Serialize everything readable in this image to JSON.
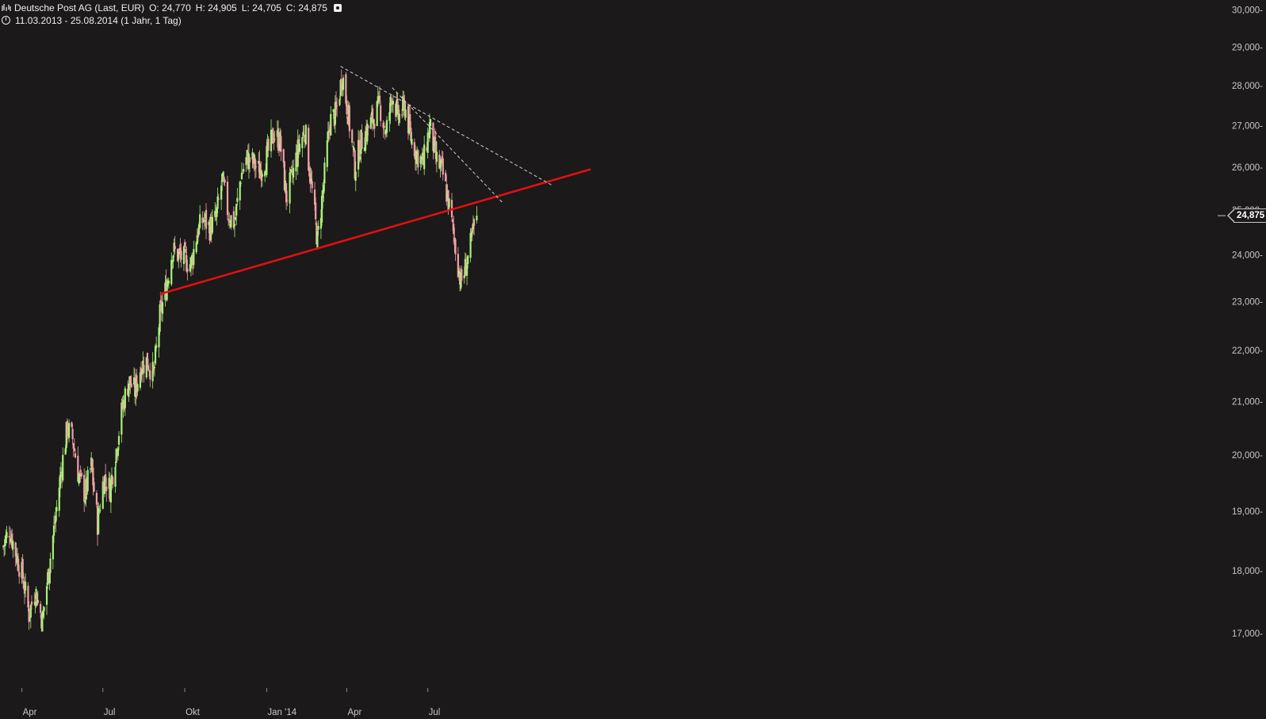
{
  "header": {
    "instrument": "Deutsche Post AG (Last, EUR)",
    "open": "O: 24,770",
    "high": "H: 24,905",
    "low": "L: 24,705",
    "close": "C: 24,875",
    "range": "11.03.2013 - 25.08.2014 (1 Jahr, 1 Tag)"
  },
  "last_price_label": "24,875",
  "colors": {
    "background": "#1b1919",
    "up_candle": "#a8f07a",
    "down_candle": "#f0a0a8",
    "support_line": "#e01010",
    "resistance_lines": "#d0d0d0",
    "axis_text": "#c8c8c8"
  },
  "chart_data": {
    "type": "candlestick",
    "x_range": [
      "2013-03-11",
      "2014-08-25"
    ],
    "ylim": [
      16200,
      30100
    ],
    "y_scale": "log",
    "y_ticks": [
      "17,000",
      "18,000",
      "19,000",
      "20,000",
      "21,000",
      "22,000",
      "23,000",
      "24,000",
      "25,000",
      "26,000",
      "27,000",
      "28,000",
      "29,000",
      "30,000"
    ],
    "x_ticks": [
      "Apr",
      "Jul",
      "Okt",
      "Jan '14",
      "Apr",
      "Jul"
    ],
    "x_tick_dates": [
      "2013-04-01",
      "2013-07-01",
      "2013-10-01",
      "2014-01-01",
      "2014-04-01",
      "2014-07-01"
    ],
    "close_path": [
      [
        "2013-03-11",
        18400
      ],
      [
        "2013-03-18",
        18700
      ],
      [
        "2013-03-25",
        18300
      ],
      [
        "2013-04-02",
        17900
      ],
      [
        "2013-04-09",
        17300
      ],
      [
        "2013-04-16",
        17700
      ],
      [
        "2013-04-24",
        17200
      ],
      [
        "2013-05-01",
        18000
      ],
      [
        "2013-05-08",
        18800
      ],
      [
        "2013-05-15",
        19700
      ],
      [
        "2013-05-22",
        20500
      ],
      [
        "2013-05-28",
        20300
      ],
      [
        "2013-06-04",
        19600
      ],
      [
        "2013-06-11",
        19300
      ],
      [
        "2013-06-18",
        19800
      ],
      [
        "2013-06-25",
        18800
      ],
      [
        "2013-07-02",
        19600
      ],
      [
        "2013-07-09",
        19400
      ],
      [
        "2013-07-16",
        20100
      ],
      [
        "2013-07-23",
        20900
      ],
      [
        "2013-07-30",
        21400
      ],
      [
        "2013-08-06",
        21200
      ],
      [
        "2013-08-13",
        21700
      ],
      [
        "2013-08-20",
        21800
      ],
      [
        "2013-08-27",
        21500
      ],
      [
        "2013-09-03",
        22700
      ],
      [
        "2013-09-10",
        23300
      ],
      [
        "2013-09-17",
        24100
      ],
      [
        "2013-09-24",
        24000
      ],
      [
        "2013-10-01",
        23900
      ],
      [
        "2013-10-08",
        23800
      ],
      [
        "2013-10-15",
        24500
      ],
      [
        "2013-10-22",
        24800
      ],
      [
        "2013-10-29",
        24600
      ],
      [
        "2013-11-05",
        24800
      ],
      [
        "2013-11-12",
        25700
      ],
      [
        "2013-11-19",
        24900
      ],
      [
        "2013-11-26",
        24700
      ],
      [
        "2013-12-03",
        25800
      ],
      [
        "2013-12-10",
        26200
      ],
      [
        "2013-12-17",
        26100
      ],
      [
        "2013-12-24",
        25900
      ],
      [
        "2014-01-02",
        26300
      ],
      [
        "2014-01-09",
        26800
      ],
      [
        "2014-01-16",
        26600
      ],
      [
        "2014-01-23",
        25300
      ],
      [
        "2014-01-30",
        25800
      ],
      [
        "2014-02-06",
        26500
      ],
      [
        "2014-02-13",
        26900
      ],
      [
        "2014-02-20",
        25600
      ],
      [
        "2014-02-27",
        24300
      ],
      [
        "2014-03-06",
        25600
      ],
      [
        "2014-03-13",
        27100
      ],
      [
        "2014-03-20",
        27300
      ],
      [
        "2014-03-27",
        28300
      ],
      [
        "2014-04-03",
        27200
      ],
      [
        "2014-04-10",
        26000
      ],
      [
        "2014-04-17",
        26600
      ],
      [
        "2014-04-24",
        26900
      ],
      [
        "2014-05-01",
        27200
      ],
      [
        "2014-05-08",
        27500
      ],
      [
        "2014-05-15",
        26800
      ],
      [
        "2014-05-22",
        27800
      ],
      [
        "2014-05-29",
        27200
      ],
      [
        "2014-06-05",
        27500
      ],
      [
        "2014-06-12",
        26700
      ],
      [
        "2014-06-19",
        26300
      ],
      [
        "2014-06-26",
        26100
      ],
      [
        "2014-07-03",
        27000
      ],
      [
        "2014-07-10",
        26200
      ],
      [
        "2014-07-17",
        25900
      ],
      [
        "2014-07-24",
        25200
      ],
      [
        "2014-07-31",
        24300
      ],
      [
        "2014-08-07",
        23400
      ],
      [
        "2014-08-12",
        23700
      ],
      [
        "2014-08-18",
        24200
      ],
      [
        "2014-08-25",
        24875
      ]
    ],
    "trendlines": [
      {
        "style": "solid",
        "points": [
          [
            "2013-09-03",
            23160
          ],
          [
            "2014-12-31",
            25950
          ]
        ]
      },
      {
        "style": "dashed",
        "points": [
          [
            "2014-03-25",
            28500
          ],
          [
            "2014-11-17",
            25580
          ]
        ]
      },
      {
        "style": "dashed",
        "points": [
          [
            "2014-05-22",
            27950
          ],
          [
            "2014-09-24",
            25150
          ]
        ]
      }
    ],
    "last_value": 24875
  }
}
